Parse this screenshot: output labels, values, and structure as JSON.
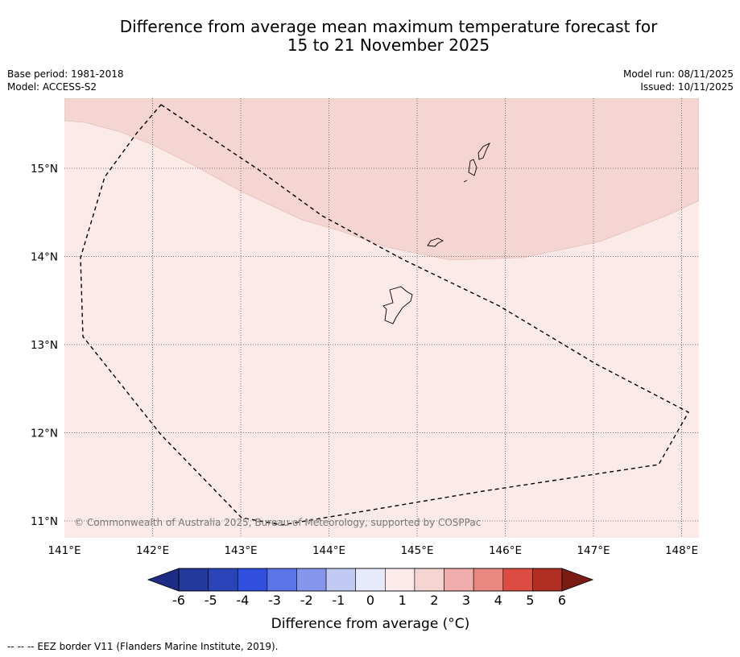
{
  "header": {
    "title_line1": "Difference from average mean maximum temperature forecast for",
    "title_line2": "15 to 21 November 2025"
  },
  "meta": {
    "base_period": "Base period: 1981-2018",
    "model": "Model: ACCESS-S2",
    "model_run": "Model run: 08/11/2025",
    "issued": "Issued: 10/11/2025"
  },
  "map": {
    "lon_labels": [
      "141°E",
      "142°E",
      "143°E",
      "144°E",
      "145°E",
      "146°E",
      "147°E",
      "148°E"
    ],
    "lat_labels": [
      "15°N",
      "14°N",
      "13°N",
      "12°N",
      "11°N"
    ],
    "copyright": "© Commonwealth of Australia 2025, Bureau of Meteorology, supported by COSPPac",
    "colors": {
      "anomaly_0_1": "#fbeae8",
      "anomaly_1_2": "#f5d5d2"
    }
  },
  "colorbar": {
    "ticks": [
      "-6",
      "-5",
      "-4",
      "-3",
      "-2",
      "-1",
      "0",
      "1",
      "2",
      "3",
      "4",
      "5",
      "6"
    ],
    "colors": [
      "#233a9c",
      "#2a43b8",
      "#304fde",
      "#5a75e7",
      "#8596ec",
      "#c2caf4",
      "#e6eafb",
      "#fbeae8",
      "#f5d5d2",
      "#efaeab",
      "#e88880",
      "#db4b41",
      "#b02f23"
    ],
    "extend_low_color": "#1d2d85",
    "extend_high_color": "#7c1b14",
    "label": "Difference from average (°C)"
  },
  "footnote": "-- -- -- EEZ border V11 (Flanders Marine Institute, 2019)."
}
